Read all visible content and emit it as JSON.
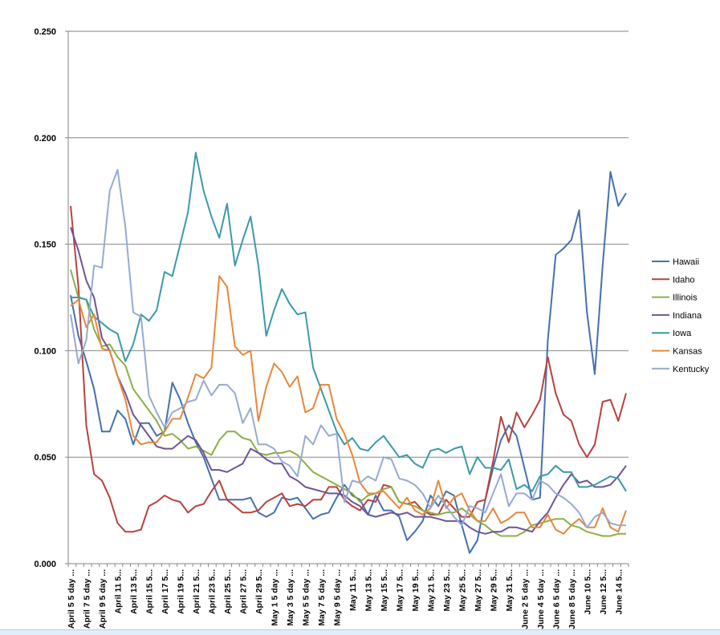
{
  "chart_data": {
    "type": "line",
    "title": "",
    "xlabel": "",
    "ylabel": "",
    "ylim": [
      0,
      0.25
    ],
    "y_ticks": [
      "0.000",
      "0.050",
      "0.100",
      "0.150",
      "0.200",
      "0.250"
    ],
    "y_tick_values": [
      0,
      0.05,
      0.1,
      0.15,
      0.2,
      0.25
    ],
    "grid": "horizontal",
    "legend_position": "right",
    "x_tick_labels": [
      "April 5 5 day ...",
      "April 7 5 day ...",
      "April 9 5 day ...",
      "April 11 5...",
      "April 13 5...",
      "April 15 5...",
      "April 17 5...",
      "April 19 5...",
      "April 21 5...",
      "April 23 5...",
      "April 25 5...",
      "April 27 5...",
      "April 29 5...",
      "May 1 5 day ...",
      "May 3 5 day ...",
      "May 5 5 day ...",
      "May 7 5 day ...",
      "May 9 5 day ...",
      "May 11 5...",
      "May 13 5...",
      "May 15 5...",
      "May 17 5...",
      "May 19 5...",
      "May 21 5...",
      "May 23 5...",
      "May 25 5...",
      "May 27 5...",
      "May 29 5...",
      "May 31 5...",
      "June 2 5 day ...",
      "June 4 5 day ...",
      "June 6 5 day ...",
      "June 8 5 day ...",
      "June 10 5...",
      "June 12 5...",
      "June 14 5..."
    ],
    "series": [
      {
        "name": "Hawaii",
        "color": "#4470B0",
        "values": [
          0.126,
          0.107,
          0.095,
          0.082,
          0.062,
          0.062,
          0.072,
          0.068,
          0.056,
          0.066,
          0.066,
          0.06,
          0.062,
          0.085,
          0.077,
          0.066,
          0.057,
          0.05,
          0.04,
          0.03,
          0.03,
          0.03,
          0.03,
          0.031,
          0.024,
          0.022,
          0.024,
          0.031,
          0.03,
          0.031,
          0.026,
          0.021,
          0.023,
          0.024,
          0.031,
          0.037,
          0.032,
          0.03,
          0.023,
          0.032,
          0.025,
          0.025,
          0.022,
          0.011,
          0.015,
          0.02,
          0.032,
          0.027,
          0.034,
          0.032,
          0.018,
          0.005,
          0.011,
          0.03,
          0.045,
          0.058,
          0.065,
          0.06,
          0.045,
          0.03,
          0.031,
          0.105,
          0.145,
          0.148,
          0.152,
          0.166,
          0.118,
          0.089,
          0.14,
          0.184,
          0.168,
          0.174
        ]
      },
      {
        "name": "Idaho",
        "color": "#B8413E",
        "values": [
          0.168,
          0.13,
          0.065,
          0.042,
          0.039,
          0.031,
          0.019,
          0.015,
          0.015,
          0.016,
          0.027,
          0.029,
          0.032,
          0.03,
          0.029,
          0.024,
          0.027,
          0.028,
          0.034,
          0.039,
          0.03,
          0.027,
          0.024,
          0.024,
          0.025,
          0.029,
          0.031,
          0.033,
          0.027,
          0.028,
          0.027,
          0.03,
          0.03,
          0.036,
          0.036,
          0.03,
          0.027,
          0.025,
          0.03,
          0.029,
          0.037,
          0.036,
          0.029,
          0.028,
          0.029,
          0.025,
          0.023,
          0.023,
          0.03,
          0.026,
          0.022,
          0.022,
          0.029,
          0.03,
          0.048,
          0.069,
          0.057,
          0.071,
          0.064,
          0.07,
          0.077,
          0.097,
          0.08,
          0.07,
          0.067,
          0.056,
          0.05,
          0.056,
          0.076,
          0.077,
          0.067,
          0.08
        ]
      },
      {
        "name": "Illinois",
        "color": "#8DAE45",
        "values": [
          0.138,
          0.125,
          0.124,
          0.11,
          0.102,
          0.103,
          0.097,
          0.093,
          0.082,
          0.077,
          0.072,
          0.067,
          0.06,
          0.061,
          0.058,
          0.054,
          0.055,
          0.053,
          0.051,
          0.058,
          0.062,
          0.062,
          0.059,
          0.058,
          0.052,
          0.051,
          0.052,
          0.052,
          0.053,
          0.051,
          0.047,
          0.043,
          0.041,
          0.039,
          0.037,
          0.035,
          0.033,
          0.029,
          0.032,
          0.033,
          0.035,
          0.036,
          0.029,
          0.028,
          0.027,
          0.025,
          0.024,
          0.023,
          0.024,
          0.024,
          0.026,
          0.023,
          0.02,
          0.018,
          0.015,
          0.013,
          0.013,
          0.013,
          0.015,
          0.018,
          0.019,
          0.02,
          0.021,
          0.021,
          0.018,
          0.017,
          0.015,
          0.014,
          0.013,
          0.013,
          0.014,
          0.014
        ]
      },
      {
        "name": "Indiana",
        "color": "#6E5496",
        "values": [
          0.158,
          0.147,
          0.133,
          0.125,
          0.106,
          0.1,
          0.088,
          0.08,
          0.07,
          0.065,
          0.06,
          0.055,
          0.054,
          0.054,
          0.057,
          0.06,
          0.058,
          0.052,
          0.044,
          0.044,
          0.043,
          0.045,
          0.047,
          0.054,
          0.052,
          0.049,
          0.047,
          0.047,
          0.041,
          0.039,
          0.036,
          0.035,
          0.034,
          0.033,
          0.033,
          0.032,
          0.029,
          0.027,
          0.023,
          0.022,
          0.023,
          0.024,
          0.023,
          0.024,
          0.022,
          0.022,
          0.022,
          0.021,
          0.02,
          0.02,
          0.02,
          0.017,
          0.015,
          0.014,
          0.015,
          0.015,
          0.017,
          0.017,
          0.016,
          0.015,
          0.02,
          0.024,
          0.031,
          0.037,
          0.042,
          0.038,
          0.039,
          0.036,
          0.036,
          0.037,
          0.041,
          0.046
        ]
      },
      {
        "name": "Iowa",
        "color": "#3A9AA9",
        "values": [
          0.125,
          0.125,
          0.124,
          0.116,
          0.113,
          0.11,
          0.108,
          0.095,
          0.103,
          0.117,
          0.114,
          0.119,
          0.137,
          0.135,
          0.15,
          0.165,
          0.193,
          0.175,
          0.163,
          0.153,
          0.169,
          0.14,
          0.152,
          0.163,
          0.14,
          0.107,
          0.119,
          0.129,
          0.122,
          0.117,
          0.118,
          0.092,
          0.082,
          0.072,
          0.062,
          0.056,
          0.059,
          0.054,
          0.053,
          0.057,
          0.06,
          0.055,
          0.05,
          0.051,
          0.047,
          0.045,
          0.053,
          0.054,
          0.052,
          0.054,
          0.055,
          0.042,
          0.05,
          0.045,
          0.045,
          0.044,
          0.049,
          0.035,
          0.037,
          0.034,
          0.041,
          0.042,
          0.046,
          0.043,
          0.043,
          0.036,
          0.036,
          0.037,
          0.039,
          0.041,
          0.04,
          0.034
        ]
      },
      {
        "name": "Kansas",
        "color": "#E8873A",
        "values": [
          0.121,
          0.124,
          0.111,
          0.117,
          0.101,
          0.1,
          0.088,
          0.077,
          0.06,
          0.056,
          0.057,
          0.057,
          0.062,
          0.068,
          0.068,
          0.078,
          0.089,
          0.087,
          0.092,
          0.135,
          0.13,
          0.102,
          0.098,
          0.1,
          0.067,
          0.083,
          0.094,
          0.09,
          0.083,
          0.088,
          0.071,
          0.073,
          0.084,
          0.084,
          0.068,
          0.061,
          0.051,
          0.038,
          0.033,
          0.033,
          0.034,
          0.03,
          0.026,
          0.031,
          0.025,
          0.023,
          0.026,
          0.039,
          0.026,
          0.031,
          0.033,
          0.025,
          0.02,
          0.02,
          0.026,
          0.019,
          0.021,
          0.024,
          0.024,
          0.017,
          0.017,
          0.023,
          0.016,
          0.014,
          0.018,
          0.021,
          0.017,
          0.017,
          0.026,
          0.017,
          0.015,
          0.025
        ]
      },
      {
        "name": "Kentucky",
        "color": "#96AAD2",
        "values": [
          0.117,
          0.094,
          0.105,
          0.14,
          0.139,
          0.175,
          0.185,
          0.158,
          0.118,
          0.116,
          0.079,
          0.071,
          0.064,
          0.071,
          0.073,
          0.076,
          0.077,
          0.086,
          0.079,
          0.084,
          0.084,
          0.08,
          0.066,
          0.073,
          0.056,
          0.056,
          0.054,
          0.048,
          0.046,
          0.041,
          0.06,
          0.056,
          0.065,
          0.06,
          0.061,
          0.029,
          0.039,
          0.038,
          0.041,
          0.039,
          0.05,
          0.049,
          0.04,
          0.039,
          0.037,
          0.033,
          0.026,
          0.032,
          0.027,
          0.022,
          0.018,
          0.027,
          0.026,
          0.024,
          0.033,
          0.042,
          0.027,
          0.033,
          0.033,
          0.03,
          0.039,
          0.037,
          0.033,
          0.031,
          0.028,
          0.024,
          0.017,
          0.022,
          0.024,
          0.019,
          0.018,
          0.018
        ]
      }
    ]
  }
}
